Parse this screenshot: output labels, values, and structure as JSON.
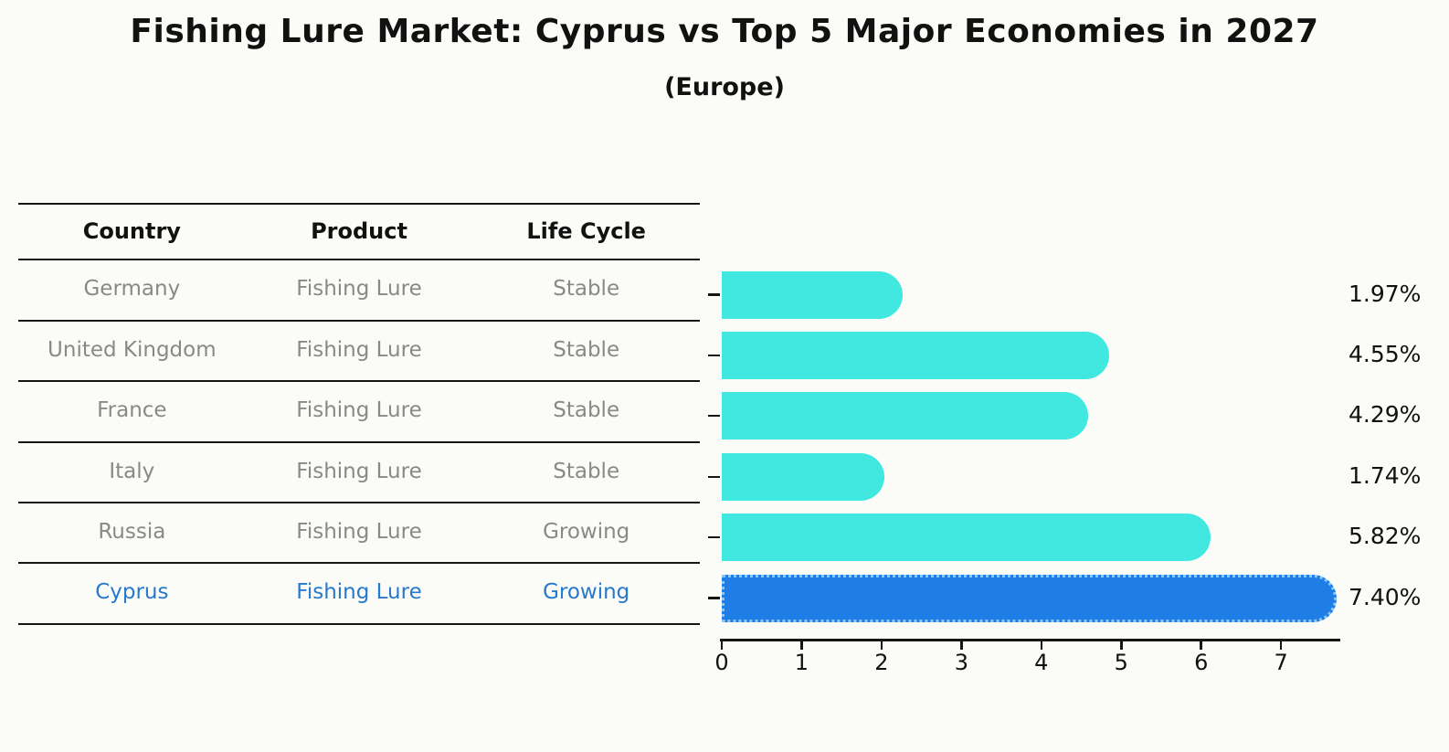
{
  "page": {
    "title": "Fishing Lure Market: Cyprus vs Top 5 Major Economies in 2027",
    "subtitle": "(Europe)"
  },
  "table": {
    "headers": [
      "Country",
      "Product",
      "Life Cycle"
    ],
    "rows": [
      {
        "country": "Germany",
        "product": "Fishing Lure",
        "life_cycle": "Stable",
        "highlight": false
      },
      {
        "country": "United Kingdom",
        "product": "Fishing Lure",
        "life_cycle": "Stable",
        "highlight": false
      },
      {
        "country": "France",
        "product": "Fishing Lure",
        "life_cycle": "Stable",
        "highlight": false
      },
      {
        "country": "Italy",
        "product": "Fishing Lure",
        "life_cycle": "Stable",
        "highlight": false
      },
      {
        "country": "Russia",
        "product": "Fishing Lure",
        "life_cycle": "Growing",
        "highlight": false
      },
      {
        "country": "Cyprus",
        "product": "Fishing Lure",
        "life_cycle": "Growing",
        "highlight": true
      }
    ]
  },
  "chart_data": {
    "type": "bar",
    "orientation": "horizontal",
    "title": "Fishing Lure Market: Cyprus vs Top 5 Major Economies in 2027",
    "subtitle": "(Europe)",
    "categories": [
      "Germany",
      "United Kingdom",
      "France",
      "Italy",
      "Russia",
      "Cyprus"
    ],
    "values": [
      1.97,
      4.55,
      4.29,
      1.74,
      5.82,
      7.4
    ],
    "value_labels": [
      "1.97%",
      "4.55%",
      "4.29%",
      "1.74%",
      "5.82%",
      "7.40%"
    ],
    "x_ticks": [
      0,
      1,
      2,
      3,
      4,
      5,
      6,
      7
    ],
    "xlim": [
      0,
      7.73
    ],
    "xlabel": "",
    "ylabel": "",
    "grid": false,
    "legend": false,
    "highlight_index": 5,
    "colors": {
      "bar": "#40e8e0",
      "highlight_bar": "#1e7ee5",
      "highlight_edge_dotted": "#8fc7f3",
      "highlight_text": "#2779cc",
      "table_text": "#898989",
      "header_text": "#111111",
      "axis": "#151515"
    }
  }
}
